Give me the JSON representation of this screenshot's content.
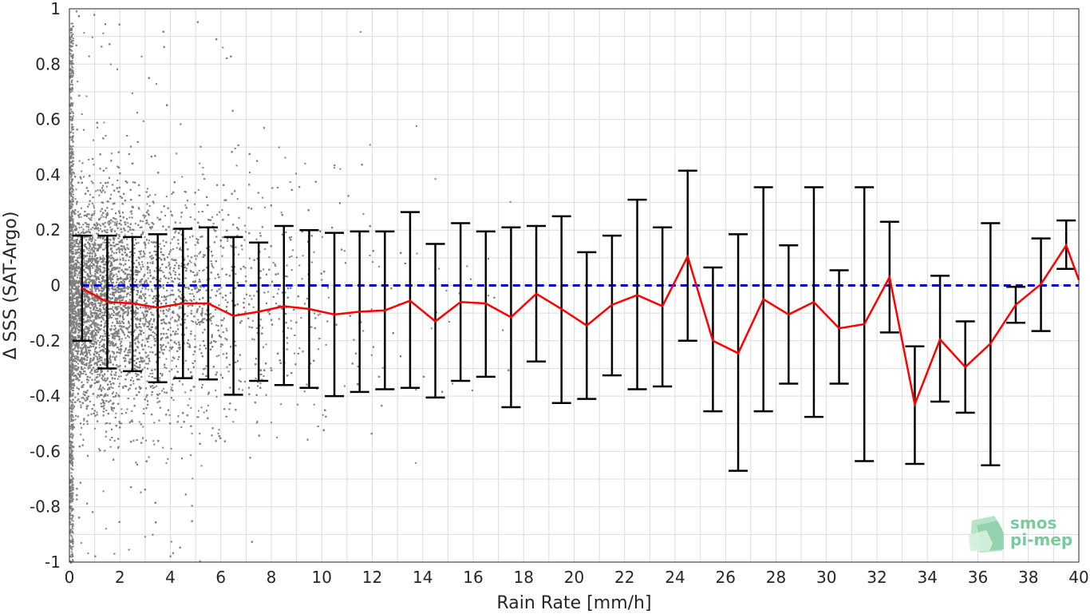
{
  "chart_data": {
    "type": "scatter",
    "title": "",
    "xlabel": "Rain Rate [mm/h]",
    "ylabel": "Δ SSS (SAT-Argo)",
    "xlim": [
      0,
      40
    ],
    "ylim": [
      -1,
      1
    ],
    "xticks": [
      0,
      2,
      4,
      6,
      8,
      10,
      12,
      14,
      16,
      18,
      20,
      22,
      24,
      26,
      28,
      30,
      32,
      34,
      36,
      38,
      40
    ],
    "yticks": [
      -1,
      -0.8,
      -0.6,
      -0.4,
      -0.2,
      0,
      0.2,
      0.4,
      0.6,
      0.8,
      1
    ],
    "xtick_labels": [
      "0",
      "2",
      "4",
      "6",
      "8",
      "10",
      "12",
      "14",
      "16",
      "18",
      "20",
      "22",
      "24",
      "26",
      "28",
      "30",
      "32",
      "34",
      "36",
      "38",
      "40"
    ],
    "ytick_labels": [
      "-1",
      "-0.8",
      "-0.6",
      "-0.4",
      "-0.2",
      "0",
      "0.2",
      "0.4",
      "0.6",
      "0.8",
      "1"
    ],
    "grid": true,
    "reference_line_y": 0,
    "colors": {
      "scatter": "#808080",
      "mean_line": "#ff0000",
      "error_bars": "#000000",
      "reference_line": "#0000cc",
      "grid": "#dcdcdc"
    },
    "series": [
      {
        "kind": "line-with-errorbars",
        "x": [
          0.5,
          1.5,
          2.5,
          3.5,
          4.5,
          5.5,
          6.5,
          7.5,
          8.5,
          9.5,
          10.5,
          11.5,
          12.5,
          13.5,
          14.5,
          15.5,
          16.5,
          17.5,
          18.5,
          19.5,
          20.5,
          21.5,
          22.5,
          23.5,
          24.5,
          25.5,
          26.5,
          27.5,
          28.5,
          29.5,
          30.5,
          31.5,
          32.5,
          33.5,
          34.5,
          35.5,
          36.5,
          37.5,
          38.5,
          39.5,
          40
        ],
        "mean": [
          -0.01,
          -0.06,
          -0.065,
          -0.08,
          -0.065,
          -0.065,
          -0.11,
          -0.095,
          -0.075,
          -0.085,
          -0.105,
          -0.095,
          -0.09,
          -0.055,
          -0.13,
          -0.06,
          -0.065,
          -0.115,
          -0.03,
          -0.085,
          -0.145,
          -0.07,
          -0.035,
          -0.075,
          0.105,
          -0.2,
          -0.245,
          -0.05,
          -0.105,
          -0.06,
          -0.155,
          -0.14,
          0.03,
          -0.43,
          -0.195,
          -0.295,
          -0.21,
          -0.07,
          0.005,
          0.145,
          0.02
        ],
        "upper": [
          0.18,
          0.18,
          0.175,
          0.185,
          0.205,
          0.21,
          0.175,
          0.155,
          0.215,
          0.2,
          0.19,
          0.195,
          0.195,
          0.265,
          0.15,
          0.225,
          0.195,
          0.21,
          0.215,
          0.25,
          0.12,
          0.18,
          0.31,
          0.21,
          0.415,
          0.065,
          0.185,
          0.355,
          0.145,
          0.355,
          0.055,
          0.355,
          0.23,
          -0.22,
          0.035,
          -0.13,
          0.225,
          -0.005,
          0.17,
          0.235,
          null
        ],
        "lower": [
          -0.2,
          -0.3,
          -0.31,
          -0.35,
          -0.335,
          -0.34,
          -0.395,
          -0.345,
          -0.36,
          -0.37,
          -0.4,
          -0.385,
          -0.375,
          -0.37,
          -0.405,
          -0.345,
          -0.33,
          -0.44,
          -0.275,
          -0.425,
          -0.41,
          -0.325,
          -0.375,
          -0.365,
          -0.2,
          -0.455,
          -0.67,
          -0.455,
          -0.355,
          -0.475,
          -0.355,
          -0.635,
          -0.17,
          -0.645,
          -0.42,
          -0.46,
          -0.65,
          -0.135,
          -0.165,
          0.06,
          null
        ]
      }
    ]
  },
  "logo": {
    "line1": "smos",
    "line2": "pi-mep"
  }
}
